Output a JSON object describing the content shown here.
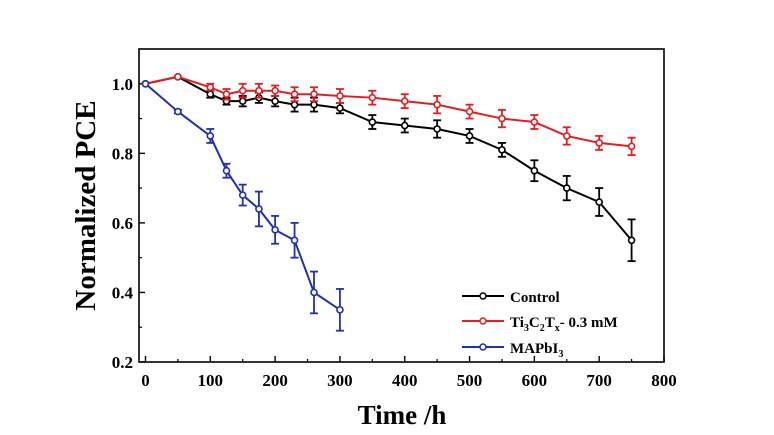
{
  "chart_data": {
    "type": "line",
    "title": "",
    "xlabel": "Time /h",
    "ylabel": "Normalized PCE",
    "xlim": [
      -10,
      800
    ],
    "ylim": [
      0.2,
      1.1
    ],
    "xticks": [
      0,
      100,
      200,
      300,
      400,
      500,
      600,
      700,
      800
    ],
    "yticks": [
      0.2,
      0.4,
      0.6,
      0.8,
      1.0
    ],
    "xtick_labels": [
      "0",
      "100",
      "200",
      "300",
      "400",
      "500",
      "600",
      "700",
      "800"
    ],
    "ytick_labels": [
      "0.2",
      "0.4",
      "0.6",
      "0.8",
      "1.0"
    ],
    "grid": false,
    "legend_position": "bottom-right",
    "series": [
      {
        "name": "Control",
        "color": "#000000",
        "x": [
          0,
          50,
          100,
          125,
          150,
          175,
          200,
          230,
          260,
          300,
          350,
          400,
          450,
          500,
          550,
          600,
          650,
          700,
          750
        ],
        "y": [
          1.0,
          1.02,
          0.97,
          0.95,
          0.95,
          0.96,
          0.95,
          0.94,
          0.94,
          0.93,
          0.89,
          0.88,
          0.87,
          0.85,
          0.81,
          0.75,
          0.7,
          0.66,
          0.55
        ],
        "err": [
          0,
          0,
          0.01,
          0.01,
          0.015,
          0.015,
          0.015,
          0.02,
          0.02,
          0.015,
          0.02,
          0.02,
          0.025,
          0.02,
          0.02,
          0.03,
          0.035,
          0.04,
          0.06
        ]
      },
      {
        "name": "Ti₃C₂Tₓ- 0.3 mM",
        "color": "#e02020",
        "x": [
          0,
          50,
          100,
          125,
          150,
          175,
          200,
          230,
          260,
          300,
          350,
          400,
          450,
          500,
          550,
          600,
          650,
          700,
          750
        ],
        "y": [
          1.0,
          1.02,
          0.99,
          0.97,
          0.98,
          0.98,
          0.98,
          0.97,
          0.97,
          0.965,
          0.96,
          0.95,
          0.94,
          0.92,
          0.9,
          0.89,
          0.85,
          0.83,
          0.82
        ],
        "err": [
          0,
          0,
          0.01,
          0.015,
          0.02,
          0.02,
          0.015,
          0.02,
          0.02,
          0.02,
          0.02,
          0.02,
          0.025,
          0.02,
          0.025,
          0.02,
          0.025,
          0.02,
          0.025
        ]
      },
      {
        "name": "MAPbI₃",
        "color": "#2030b0",
        "x": [
          0,
          50,
          100,
          125,
          150,
          175,
          200,
          230,
          260,
          300
        ],
        "y": [
          1.0,
          0.92,
          0.85,
          0.75,
          0.68,
          0.64,
          0.58,
          0.55,
          0.4,
          0.35
        ],
        "err": [
          0,
          0.005,
          0.02,
          0.02,
          0.03,
          0.05,
          0.04,
          0.05,
          0.06,
          0.06
        ]
      }
    ],
    "legend": {
      "control": "Control",
      "ti_pre": "Ti",
      "ti_sub1": "3",
      "ti_c": "C",
      "ti_sub2": "2",
      "ti_t": "T",
      "ti_sub3": "x",
      "ti_post": "- 0.3 mM",
      "ma_pre": "MAPbI",
      "ma_sub": "3"
    }
  }
}
